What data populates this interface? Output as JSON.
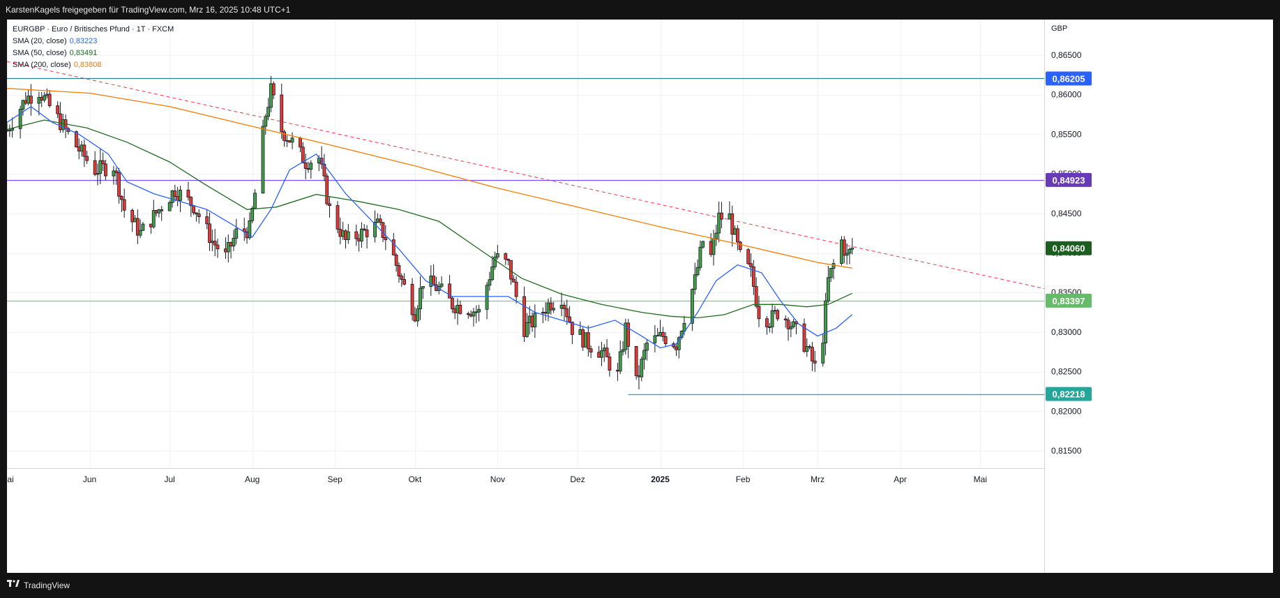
{
  "header": {
    "text": "KarstenKagels freigegeben für TradingView.com, Mrz 16, 2025 10:48 UTC+1"
  },
  "footer": {
    "logo_icon": "tradingview-logo-icon",
    "brand": "TradingView"
  },
  "legend": {
    "symbol": "EURGBP · Euro / Britisches Pfund · 1T · FXCM",
    "sma20": {
      "label": "SMA (20, close)",
      "value": "0,83223",
      "color": "#2962ff"
    },
    "sma50": {
      "label": "SMA (50, close)",
      "value": "0,83491",
      "color": "#1e6b1e"
    },
    "sma200": {
      "label": "SMA (200, close)",
      "value": "0,83808",
      "color": "#f57c00"
    }
  },
  "chart_data": {
    "type": "candlestick",
    "currency": "GBP",
    "ylim": [
      0.8128,
      0.8695
    ],
    "y_ticks": [
      {
        "v": 0.865,
        "t": "0,86500"
      },
      {
        "v": 0.86,
        "t": "0,86000"
      },
      {
        "v": 0.855,
        "t": "0,85500"
      },
      {
        "v": 0.85,
        "t": "0,85000"
      },
      {
        "v": 0.845,
        "t": "0,84500"
      },
      {
        "v": 0.84,
        "t": "0,84000"
      },
      {
        "v": 0.835,
        "t": "0,83500"
      },
      {
        "v": 0.83,
        "t": "0,83000"
      },
      {
        "v": 0.825,
        "t": "0,82500"
      },
      {
        "v": 0.82,
        "t": "0,82000"
      },
      {
        "v": 0.815,
        "t": "0,81500"
      }
    ],
    "x_ticks": [
      {
        "d": "2024-05-01",
        "t": "Mai"
      },
      {
        "d": "2024-06-01",
        "t": "Jun"
      },
      {
        "d": "2024-07-01",
        "t": "Jul"
      },
      {
        "d": "2024-08-01",
        "t": "Aug"
      },
      {
        "d": "2024-09-01",
        "t": "Sep"
      },
      {
        "d": "2024-10-01",
        "t": "Okt"
      },
      {
        "d": "2024-11-01",
        "t": "Nov"
      },
      {
        "d": "2024-12-01",
        "t": "Dez"
      },
      {
        "d": "2025-01-01",
        "t": "2025",
        "bold": true
      },
      {
        "d": "2025-02-01",
        "t": "Feb"
      },
      {
        "d": "2025-03-01",
        "t": "Mrz"
      },
      {
        "d": "2025-04-01",
        "t": "Apr"
      },
      {
        "d": "2025-05-01",
        "t": "Mai"
      }
    ],
    "x_range": [
      "2024-05-01",
      "2025-05-25"
    ],
    "horizontal_levels": [
      {
        "v": 0.86205,
        "t": "0,86205",
        "color": "#2a7f9f",
        "badge": "#2962ff",
        "from": "2024-05-01"
      },
      {
        "v": 0.84923,
        "t": "0,84923",
        "color": "#7c4dff",
        "badge": "#673ab7",
        "from": "2024-05-01"
      },
      {
        "v": 0.83397,
        "t": "0,83397",
        "color": "#81c784",
        "badge": "#66bb6a",
        "from": "2024-05-01"
      },
      {
        "v": 0.82218,
        "t": "0,82218",
        "color": "#26a69a",
        "badge": "#26a69a",
        "from": "2024-12-20"
      }
    ],
    "last_price": {
      "v": 0.8406,
      "t": "0,84060",
      "badge": "#1b5e20"
    },
    "trendline": {
      "color": "#f23645",
      "points": [
        {
          "d": "2024-05-01",
          "v": 0.8642
        },
        {
          "d": "2025-05-25",
          "v": 0.8355
        }
      ]
    },
    "sma20": {
      "color": "#2962ff",
      "points": [
        {
          "d": "2024-05-01",
          "v": 0.8565
        },
        {
          "d": "2024-05-10",
          "v": 0.8585
        },
        {
          "d": "2024-05-18",
          "v": 0.8565
        },
        {
          "d": "2024-05-28",
          "v": 0.855
        },
        {
          "d": "2024-06-08",
          "v": 0.8525
        },
        {
          "d": "2024-06-15",
          "v": 0.849
        },
        {
          "d": "2024-06-25",
          "v": 0.8475
        },
        {
          "d": "2024-07-05",
          "v": 0.8465
        },
        {
          "d": "2024-07-15",
          "v": 0.8455
        },
        {
          "d": "2024-07-25",
          "v": 0.8435
        },
        {
          "d": "2024-08-01",
          "v": 0.842
        },
        {
          "d": "2024-08-08",
          "v": 0.8455
        },
        {
          "d": "2024-08-15",
          "v": 0.8505
        },
        {
          "d": "2024-08-25",
          "v": 0.8525
        },
        {
          "d": "2024-09-05",
          "v": 0.8475
        },
        {
          "d": "2024-09-15",
          "v": 0.844
        },
        {
          "d": "2024-09-25",
          "v": 0.8405
        },
        {
          "d": "2024-10-05",
          "v": 0.8365
        },
        {
          "d": "2024-10-15",
          "v": 0.8345
        },
        {
          "d": "2024-10-25",
          "v": 0.8345
        },
        {
          "d": "2024-11-05",
          "v": 0.8345
        },
        {
          "d": "2024-11-15",
          "v": 0.8325
        },
        {
          "d": "2024-11-25",
          "v": 0.8315
        },
        {
          "d": "2024-12-05",
          "v": 0.8305
        },
        {
          "d": "2024-12-15",
          "v": 0.8315
        },
        {
          "d": "2024-12-25",
          "v": 0.8295
        },
        {
          "d": "2025-01-01",
          "v": 0.828
        },
        {
          "d": "2025-01-07",
          "v": 0.8285
        },
        {
          "d": "2025-01-15",
          "v": 0.8325
        },
        {
          "d": "2025-01-22",
          "v": 0.8365
        },
        {
          "d": "2025-01-30",
          "v": 0.8385
        },
        {
          "d": "2025-02-08",
          "v": 0.8375
        },
        {
          "d": "2025-02-15",
          "v": 0.834
        },
        {
          "d": "2025-02-22",
          "v": 0.831
        },
        {
          "d": "2025-03-01",
          "v": 0.8295
        },
        {
          "d": "2025-03-08",
          "v": 0.8305
        },
        {
          "d": "2025-03-14",
          "v": 0.83223
        }
      ]
    },
    "sma50": {
      "color": "#1e6b1e",
      "points": [
        {
          "d": "2024-05-01",
          "v": 0.8556
        },
        {
          "d": "2024-05-15",
          "v": 0.8568
        },
        {
          "d": "2024-05-31",
          "v": 0.8558
        },
        {
          "d": "2024-06-15",
          "v": 0.854
        },
        {
          "d": "2024-07-01",
          "v": 0.8515
        },
        {
          "d": "2024-07-15",
          "v": 0.8485
        },
        {
          "d": "2024-07-30",
          "v": 0.8455
        },
        {
          "d": "2024-08-10",
          "v": 0.8458
        },
        {
          "d": "2024-08-25",
          "v": 0.8474
        },
        {
          "d": "2024-09-10",
          "v": 0.8465
        },
        {
          "d": "2024-09-25",
          "v": 0.8455
        },
        {
          "d": "2024-10-10",
          "v": 0.844
        },
        {
          "d": "2024-10-25",
          "v": 0.8405
        },
        {
          "d": "2024-11-10",
          "v": 0.8368
        },
        {
          "d": "2024-11-25",
          "v": 0.8348
        },
        {
          "d": "2024-12-10",
          "v": 0.8335
        },
        {
          "d": "2024-12-25",
          "v": 0.8325
        },
        {
          "d": "2025-01-05",
          "v": 0.832
        },
        {
          "d": "2025-01-15",
          "v": 0.8318
        },
        {
          "d": "2025-01-25",
          "v": 0.8322
        },
        {
          "d": "2025-02-05",
          "v": 0.8335
        },
        {
          "d": "2025-02-15",
          "v": 0.8335
        },
        {
          "d": "2025-02-25",
          "v": 0.8332
        },
        {
          "d": "2025-03-05",
          "v": 0.8335
        },
        {
          "d": "2025-03-14",
          "v": 0.83491
        }
      ]
    },
    "sma200": {
      "color": "#f57c00",
      "points": [
        {
          "d": "2024-05-01",
          "v": 0.8608
        },
        {
          "d": "2024-06-01",
          "v": 0.8602
        },
        {
          "d": "2024-07-01",
          "v": 0.8585
        },
        {
          "d": "2024-08-01",
          "v": 0.856
        },
        {
          "d": "2024-09-01",
          "v": 0.8535
        },
        {
          "d": "2024-10-01",
          "v": 0.851
        },
        {
          "d": "2024-11-01",
          "v": 0.8482
        },
        {
          "d": "2024-12-01",
          "v": 0.8458
        },
        {
          "d": "2025-01-01",
          "v": 0.8433
        },
        {
          "d": "2025-02-01",
          "v": 0.841
        },
        {
          "d": "2025-03-01",
          "v": 0.8388
        },
        {
          "d": "2025-03-14",
          "v": 0.83808
        }
      ]
    },
    "close_path": [
      {
        "d": "2024-05-01",
        "v": 0.8555
      },
      {
        "d": "2024-05-08",
        "v": 0.8595
      },
      {
        "d": "2024-05-13",
        "v": 0.8605
      },
      {
        "d": "2024-05-20",
        "v": 0.857
      },
      {
        "d": "2024-05-27",
        "v": 0.8535
      },
      {
        "d": "2024-06-03",
        "v": 0.8505
      },
      {
        "d": "2024-06-10",
        "v": 0.851
      },
      {
        "d": "2024-06-14",
        "v": 0.8455
      },
      {
        "d": "2024-06-20",
        "v": 0.8425
      },
      {
        "d": "2024-06-27",
        "v": 0.8455
      },
      {
        "d": "2024-07-03",
        "v": 0.848
      },
      {
        "d": "2024-07-10",
        "v": 0.846
      },
      {
        "d": "2024-07-17",
        "v": 0.8415
      },
      {
        "d": "2024-07-22",
        "v": 0.8395
      },
      {
        "d": "2024-07-26",
        "v": 0.8425
      },
      {
        "d": "2024-07-31",
        "v": 0.843
      },
      {
        "d": "2024-08-02",
        "v": 0.8475
      },
      {
        "d": "2024-08-06",
        "v": 0.8575
      },
      {
        "d": "2024-08-08",
        "v": 0.8605
      },
      {
        "d": "2024-08-12",
        "v": 0.8555
      },
      {
        "d": "2024-08-16",
        "v": 0.854
      },
      {
        "d": "2024-08-21",
        "v": 0.8515
      },
      {
        "d": "2024-08-26",
        "v": 0.852
      },
      {
        "d": "2024-08-30",
        "v": 0.8455
      },
      {
        "d": "2024-09-05",
        "v": 0.8415
      },
      {
        "d": "2024-09-11",
        "v": 0.8425
      },
      {
        "d": "2024-09-17",
        "v": 0.8435
      },
      {
        "d": "2024-09-21",
        "v": 0.8415
      },
      {
        "d": "2024-09-26",
        "v": 0.8365
      },
      {
        "d": "2024-10-01",
        "v": 0.8325
      },
      {
        "d": "2024-10-04",
        "v": 0.8365
      },
      {
        "d": "2024-10-10",
        "v": 0.8355
      },
      {
        "d": "2024-10-15",
        "v": 0.8335
      },
      {
        "d": "2024-10-21",
        "v": 0.833
      },
      {
        "d": "2024-10-25",
        "v": 0.8325
      },
      {
        "d": "2024-10-31",
        "v": 0.8395
      },
      {
        "d": "2024-11-05",
        "v": 0.8385
      },
      {
        "d": "2024-11-11",
        "v": 0.8305
      },
      {
        "d": "2024-11-15",
        "v": 0.8315
      },
      {
        "d": "2024-11-20",
        "v": 0.8335
      },
      {
        "d": "2024-11-25",
        "v": 0.8345
      },
      {
        "d": "2024-11-29",
        "v": 0.8305
      },
      {
        "d": "2024-12-05",
        "v": 0.8285
      },
      {
        "d": "2024-12-10",
        "v": 0.8275
      },
      {
        "d": "2024-12-16",
        "v": 0.8245
      },
      {
        "d": "2024-12-19",
        "v": 0.8305
      },
      {
        "d": "2024-12-23",
        "v": 0.8235
      },
      {
        "d": "2024-12-27",
        "v": 0.8285
      },
      {
        "d": "2025-01-02",
        "v": 0.8295
      },
      {
        "d": "2025-01-07",
        "v": 0.8285
      },
      {
        "d": "2025-01-10",
        "v": 0.832
      },
      {
        "d": "2025-01-14",
        "v": 0.8365
      },
      {
        "d": "2025-01-17",
        "v": 0.8415
      },
      {
        "d": "2025-01-20",
        "v": 0.8395
      },
      {
        "d": "2025-01-23",
        "v": 0.8445
      },
      {
        "d": "2025-01-27",
        "v": 0.8445
      },
      {
        "d": "2025-01-31",
        "v": 0.8395
      },
      {
        "d": "2025-02-04",
        "v": 0.8375
      },
      {
        "d": "2025-02-07",
        "v": 0.8325
      },
      {
        "d": "2025-02-11",
        "v": 0.8315
      },
      {
        "d": "2025-02-14",
        "v": 0.8325
      },
      {
        "d": "2025-02-18",
        "v": 0.8315
      },
      {
        "d": "2025-02-21",
        "v": 0.83
      },
      {
        "d": "2025-02-25",
        "v": 0.828
      },
      {
        "d": "2025-02-28",
        "v": 0.8255
      },
      {
        "d": "2025-03-03",
        "v": 0.8295
      },
      {
        "d": "2025-03-05",
        "v": 0.8365
      },
      {
        "d": "2025-03-07",
        "v": 0.8385
      },
      {
        "d": "2025-03-10",
        "v": 0.8415
      },
      {
        "d": "2025-03-12",
        "v": 0.8395
      },
      {
        "d": "2025-03-14",
        "v": 0.8406
      }
    ]
  }
}
